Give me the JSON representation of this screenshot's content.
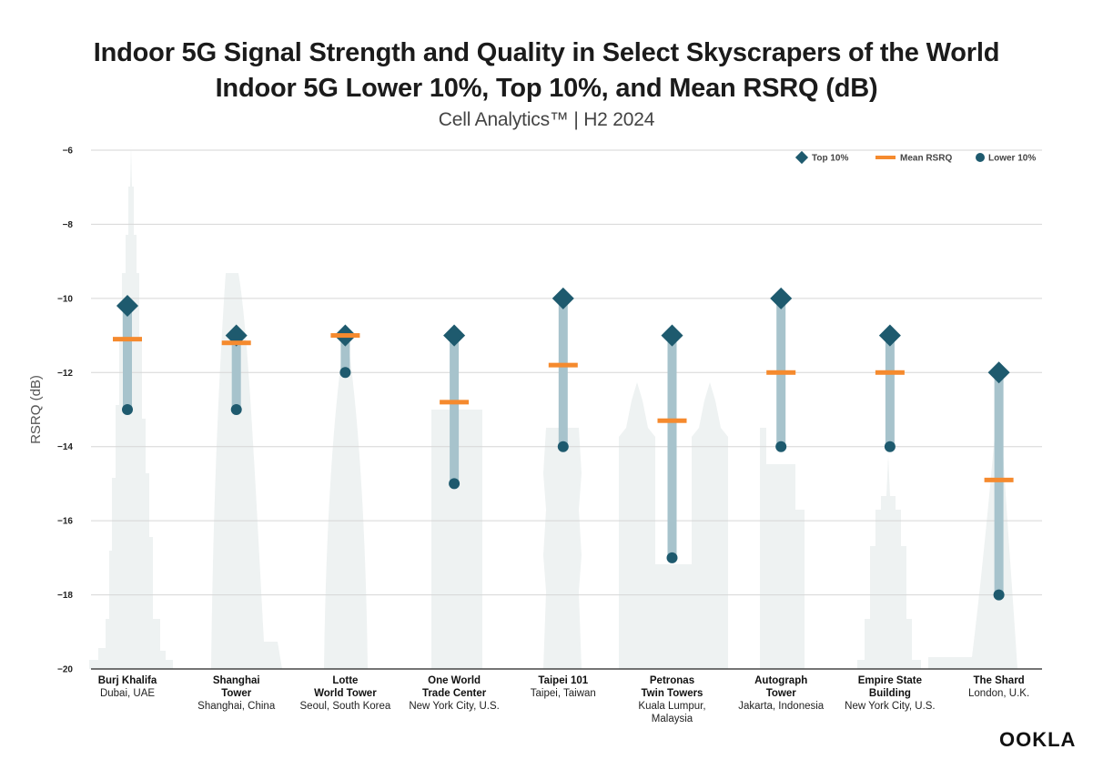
{
  "title": "Indoor 5G Signal Strength and Quality in Select Skyscrapers of the World",
  "subtitle": "Indoor 5G Lower 10%, Top 10%, and Mean RSRQ (dB)",
  "source_line": "Cell Analytics™ | H2 2024",
  "brand": "OOKLA",
  "colors": {
    "top": "#1e5a6e",
    "mean": "#f58a2e",
    "lower": "#1e5a6e",
    "range_bar": "#a7c3cc",
    "silhouette": "#eef2f2",
    "grid": "#d6d6d6"
  },
  "chart_data": {
    "type": "range",
    "ylabel": "RSRQ (dB)",
    "ylim": [
      -20,
      -6
    ],
    "yticks": [
      -6,
      -8,
      -10,
      -12,
      -14,
      -16,
      -18,
      -20
    ],
    "grid": true,
    "legend_position": "top-right",
    "legend": [
      "Top 10%",
      "Mean RSRQ",
      "Lower 10%"
    ],
    "categories": [
      {
        "name": [
          "Burj Khalifa"
        ],
        "location": [
          "Dubai, UAE"
        ]
      },
      {
        "name": [
          "Shanghai",
          "Tower"
        ],
        "location": [
          "Shanghai, China"
        ]
      },
      {
        "name": [
          "Lotte",
          "World Tower"
        ],
        "location": [
          "Seoul, South Korea"
        ]
      },
      {
        "name": [
          "One World",
          "Trade Center"
        ],
        "location": [
          "New York City, U.S."
        ]
      },
      {
        "name": [
          "Taipei 101"
        ],
        "location": [
          "Taipei, Taiwan"
        ]
      },
      {
        "name": [
          "Petronas",
          "Twin Towers"
        ],
        "location": [
          "Kuala Lumpur,",
          "Malaysia"
        ]
      },
      {
        "name": [
          "Autograph",
          "Tower"
        ],
        "location": [
          "Jakarta, Indonesia"
        ]
      },
      {
        "name": [
          "Empire State",
          "Building"
        ],
        "location": [
          "New York City, U.S."
        ]
      },
      {
        "name": [
          "The Shard"
        ],
        "location": [
          "London, U.K."
        ]
      }
    ],
    "series": [
      {
        "name": "Top 10%",
        "values": [
          -10.2,
          -11,
          -11,
          -11,
          -10,
          -11,
          -10,
          -11,
          -12
        ]
      },
      {
        "name": "Mean RSRQ",
        "values": [
          -11.1,
          -11.2,
          -11.0,
          -12.8,
          -11.8,
          -13.3,
          -12.0,
          -12.0,
          -14.9
        ]
      },
      {
        "name": "Lower 10%",
        "values": [
          -13,
          -13,
          -12,
          -15,
          -14,
          -17,
          -14,
          -14,
          -18
        ]
      }
    ]
  }
}
